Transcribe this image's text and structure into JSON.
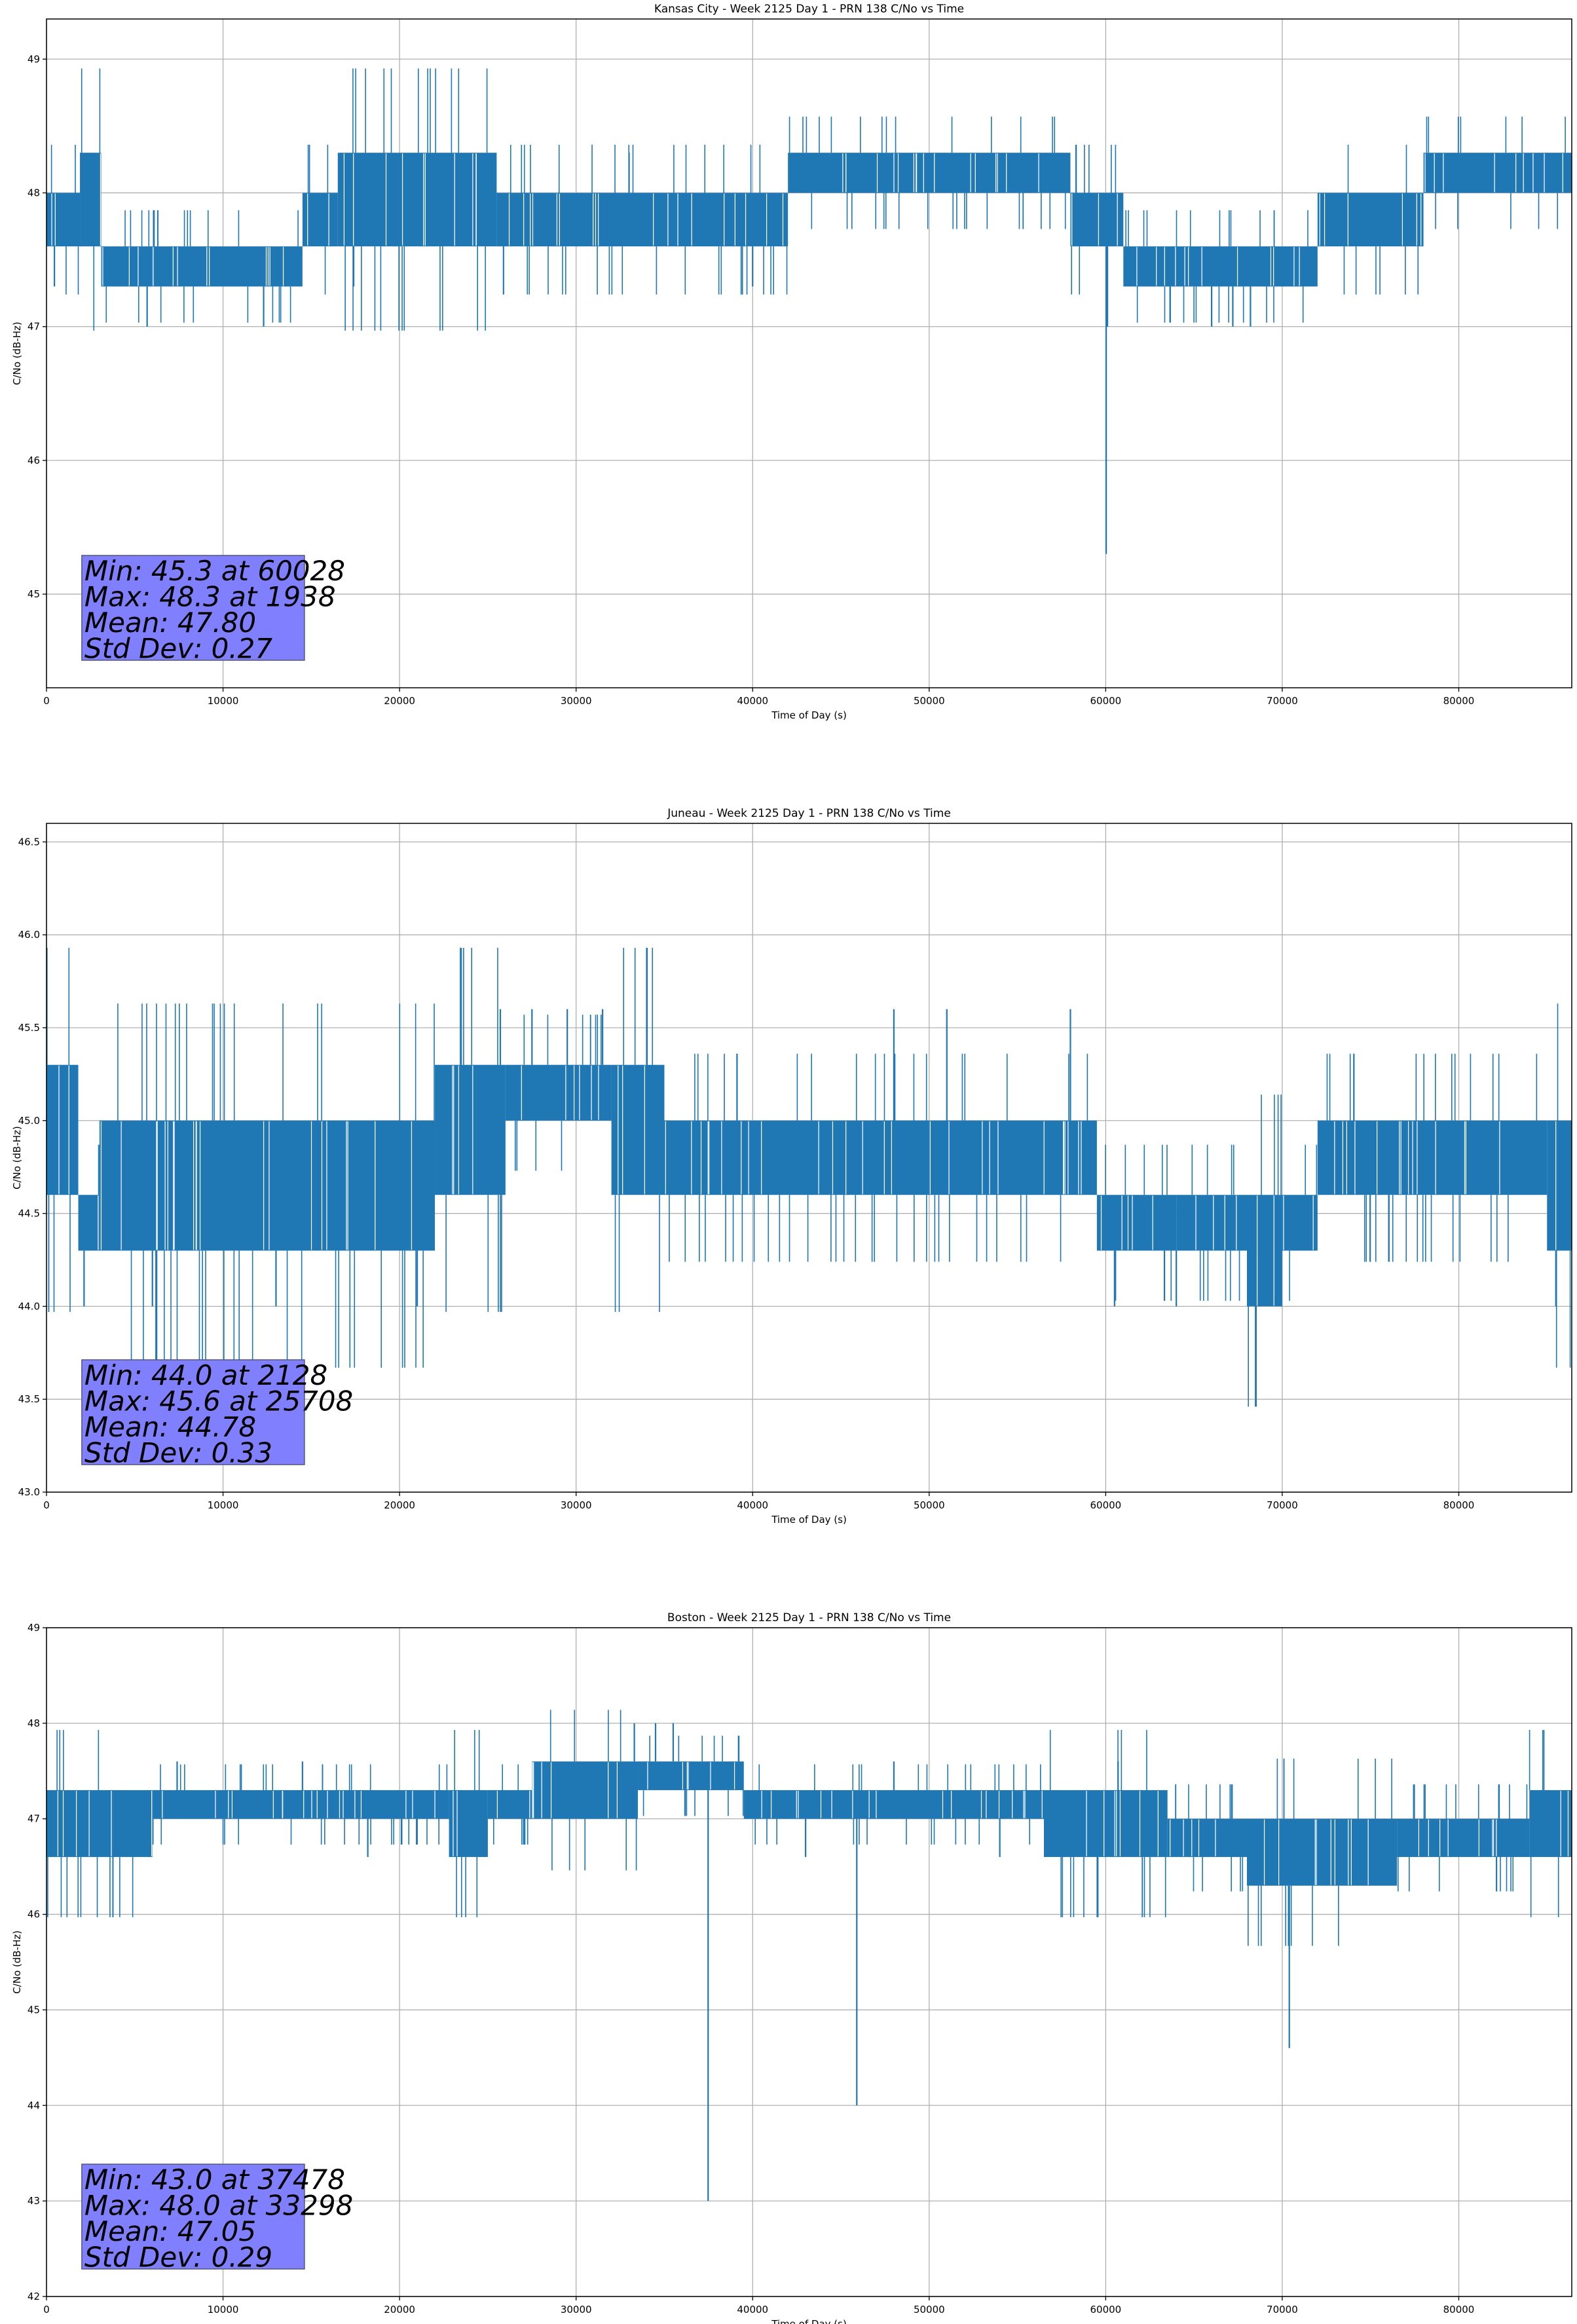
{
  "chart_data": [
    {
      "type": "line",
      "title": "Kansas City - Week 2125 Day 1 - PRN 138 C/No vs Time",
      "xlabel": "Time of Day (s)",
      "ylabel": "C/No (dB-Hz)",
      "xlim": [
        0,
        86400
      ],
      "ylim": [
        44.3,
        49.3
      ],
      "xticks": [
        0,
        10000,
        20000,
        30000,
        40000,
        50000,
        60000,
        70000,
        80000
      ],
      "yticks": [
        45,
        46,
        47,
        48,
        49
      ],
      "ytick_labels": [
        "45",
        "46",
        "47",
        "48",
        "49"
      ],
      "grid": true,
      "color": "#1f77b4",
      "stats_box_color": "#8080ff",
      "stats": [
        "Min: 45.3 at 60028",
        "Max: 48.3 at 1938",
        "Mean: 47.80",
        "Std Dev: 0.27"
      ],
      "series": [
        {
          "segments": [
            [
              0,
              1900,
              47.6,
              48.0
            ],
            [
              1900,
              3100,
              47.6,
              48.3
            ],
            [
              3100,
              6000,
              47.3,
              47.6
            ],
            [
              6000,
              14500,
              47.3,
              47.6
            ],
            [
              14500,
              16500,
              47.6,
              48.0
            ],
            [
              16500,
              25500,
              47.6,
              48.3
            ],
            [
              25500,
              42000,
              47.6,
              48.0
            ],
            [
              42000,
              58000,
              48.0,
              48.3
            ],
            [
              58000,
              61000,
              47.6,
              48.0
            ],
            [
              61000,
              72000,
              47.3,
              47.6
            ],
            [
              72000,
              78000,
              47.6,
              48.0
            ],
            [
              78000,
              86400,
              48.0,
              48.3
            ]
          ],
          "spikes": [
            [
              1938,
              48.3
            ],
            [
              450,
              47.3
            ],
            [
              5700,
              47.0
            ],
            [
              12300,
              47.0
            ],
            [
              17400,
              47.3
            ],
            [
              23000,
              47.6
            ],
            [
              33000,
              48.3
            ],
            [
              40000,
              47.3
            ],
            [
              60028,
              45.3
            ],
            [
              60100,
              47.0
            ],
            [
              66000,
              47.0
            ],
            [
              67200,
              47.0
            ],
            [
              68200,
              47.0
            ],
            [
              75000,
              47.6
            ],
            [
              81000,
              48.0
            ]
          ]
        }
      ]
    },
    {
      "type": "line",
      "title": "Juneau - Week 2125 Day 1 - PRN 138 C/No vs Time",
      "xlabel": "Time of Day (s)",
      "ylabel": "C/No (dB-Hz)",
      "xlim": [
        0,
        86400
      ],
      "ylim": [
        43.0,
        46.6
      ],
      "xticks": [
        0,
        10000,
        20000,
        30000,
        40000,
        50000,
        60000,
        70000,
        80000
      ],
      "yticks": [
        43.0,
        43.5,
        44.0,
        44.5,
        45.0,
        45.5,
        46.0,
        46.5
      ],
      "ytick_labels": [
        "43.0",
        "43.5",
        "44.0",
        "44.5",
        "45.0",
        "45.5",
        "46.0",
        "46.5"
      ],
      "grid": true,
      "color": "#1f77b4",
      "stats_box_color": "#8080ff",
      "stats": [
        "Min: 44.0 at 2128",
        "Max: 45.6 at 25708",
        "Mean: 44.78",
        "Std Dev: 0.33"
      ],
      "series": [
        {
          "segments": [
            [
              0,
              1800,
              44.6,
              45.3
            ],
            [
              1800,
              3000,
              44.3,
              44.6
            ],
            [
              3000,
              22000,
              44.3,
              45.0
            ],
            [
              22000,
              26000,
              44.6,
              45.3
            ],
            [
              26000,
              32000,
              45.0,
              45.3
            ],
            [
              32000,
              35000,
              44.6,
              45.3
            ],
            [
              35000,
              59500,
              44.6,
              45.0
            ],
            [
              59500,
              64000,
              44.3,
              44.6
            ],
            [
              64000,
              68000,
              44.3,
              44.6
            ],
            [
              68000,
              70000,
              44.0,
              44.6
            ],
            [
              70000,
              72000,
              44.3,
              44.6
            ],
            [
              72000,
              85000,
              44.6,
              45.0
            ],
            [
              85000,
              86400,
              44.3,
              45.0
            ]
          ],
          "spikes": [
            [
              2128,
              44.0
            ],
            [
              6000,
              44.0
            ],
            [
              13000,
              44.0
            ],
            [
              21000,
              44.0
            ],
            [
              25708,
              45.6
            ],
            [
              27500,
              45.6
            ],
            [
              29500,
              45.6
            ],
            [
              31500,
              45.6
            ],
            [
              48000,
              45.6
            ],
            [
              51000,
              45.6
            ],
            [
              58000,
              45.6
            ],
            [
              60500,
              44.0
            ],
            [
              64000,
              44.0
            ],
            [
              69500,
              44.0
            ],
            [
              85500,
              44.0
            ]
          ]
        }
      ]
    },
    {
      "type": "line",
      "title": "Boston - Week 2125 Day 1 - PRN 138 C/No vs Time",
      "xlabel": "Time of Day (s)",
      "ylabel": "C/No (dB-Hz)",
      "xlim": [
        0,
        86400
      ],
      "ylim": [
        42.0,
        49.0
      ],
      "xticks": [
        0,
        10000,
        20000,
        30000,
        40000,
        50000,
        60000,
        70000,
        80000
      ],
      "yticks": [
        42,
        43,
        44,
        45,
        46,
        47,
        48,
        49
      ],
      "ytick_labels": [
        "42",
        "43",
        "44",
        "45",
        "46",
        "47",
        "48",
        "49"
      ],
      "grid": true,
      "color": "#1f77b4",
      "stats_box_color": "#8080ff",
      "stats": [
        "Min: 43.0 at 37478",
        "Max: 48.0 at 33298",
        "Mean: 47.05",
        "Std Dev: 0.29"
      ],
      "series": [
        {
          "segments": [
            [
              0,
              6000,
              46.6,
              47.3
            ],
            [
              6000,
              22800,
              47.0,
              47.3
            ],
            [
              22800,
              25000,
              46.6,
              47.3
            ],
            [
              25000,
              27500,
              47.0,
              47.3
            ],
            [
              27500,
              33500,
              47.0,
              47.6
            ],
            [
              33500,
              39500,
              47.3,
              47.6
            ],
            [
              39500,
              46000,
              47.0,
              47.3
            ],
            [
              46000,
              56500,
              47.0,
              47.3
            ],
            [
              56500,
              63500,
              46.6,
              47.3
            ],
            [
              63500,
              68000,
              46.6,
              47.0
            ],
            [
              68000,
              76500,
              46.3,
              47.0
            ],
            [
              76500,
              84000,
              46.6,
              47.0
            ],
            [
              84000,
              86400,
              46.6,
              47.3
            ]
          ],
          "spikes": [
            [
              33298,
              48.0
            ],
            [
              34500,
              48.0
            ],
            [
              35500,
              48.0
            ],
            [
              37478,
              43.0
            ],
            [
              45900,
              44.0
            ],
            [
              70400,
              44.6
            ],
            [
              18200,
              46.6
            ],
            [
              5000,
              46.6
            ],
            [
              7400,
              47.6
            ],
            [
              14500,
              47.6
            ],
            [
              48000,
              47.6
            ],
            [
              60700,
              47.6
            ],
            [
              43000,
              46.6
            ],
            [
              54000,
              46.6
            ]
          ]
        }
      ]
    }
  ]
}
